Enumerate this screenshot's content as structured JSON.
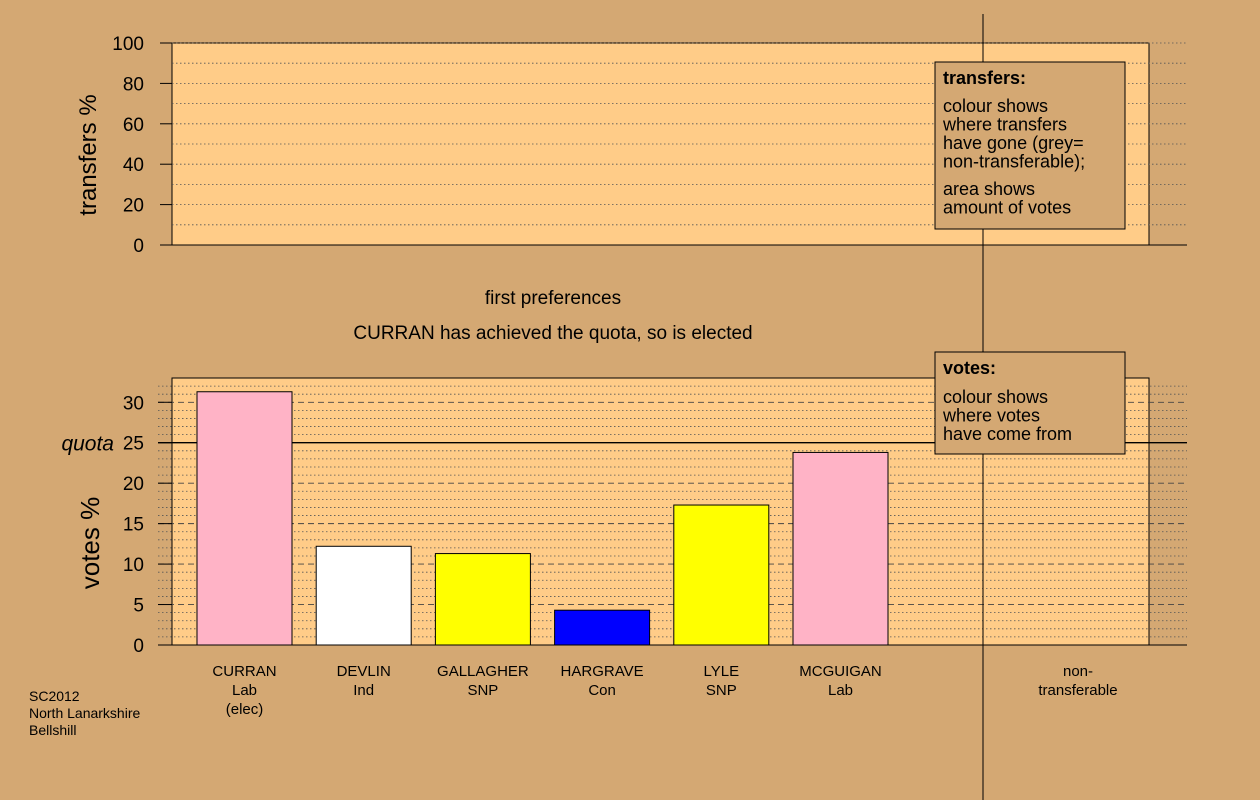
{
  "colors": {
    "background": "#d4a873",
    "panel": "#ffcc88",
    "legend_box": "#d4a873",
    "candidate_colors": [
      "#ffb3c6",
      "#ffffff",
      "#ffff00",
      "#0000ff",
      "#ffff00",
      "#ffb3c6"
    ]
  },
  "stage": {
    "line1": "first preferences",
    "line2": "CURRAN has achieved the quota, so is elected"
  },
  "footer": {
    "line1": "SC2012",
    "line2": "North Lanarkshire",
    "line3": "Bellshill"
  },
  "legend_transfers": {
    "title": "transfers:",
    "lines": [
      "colour shows",
      "where transfers",
      "have gone (grey=",
      "non-transferable);"
    ],
    "lines2": [
      "area shows",
      "amount of votes"
    ]
  },
  "legend_votes": {
    "title": "votes:",
    "lines": [
      "colour shows",
      "where votes",
      "have come from"
    ]
  },
  "chart_data": [
    {
      "type": "bar",
      "title": "",
      "ylabel": "transfers %",
      "ylim": [
        0,
        100
      ],
      "yticks": [
        0,
        20,
        40,
        60,
        80,
        100
      ],
      "series": [],
      "grid": true
    },
    {
      "type": "bar",
      "ylabel": "votes %",
      "ylim": [
        0,
        33
      ],
      "yticks": [
        0,
        5,
        10,
        15,
        20,
        25,
        30
      ],
      "quota": 25,
      "quota_label": "quota",
      "categories": [
        {
          "name": "CURRAN",
          "party": "Lab",
          "note": "(elec)"
        },
        {
          "name": "DEVLIN",
          "party": "Ind",
          "note": ""
        },
        {
          "name": "GALLAGHER",
          "party": "SNP",
          "note": ""
        },
        {
          "name": "HARGRAVE",
          "party": "Con",
          "note": ""
        },
        {
          "name": "LYLE",
          "party": "SNP",
          "note": ""
        },
        {
          "name": "MCGUIGAN",
          "party": "Lab",
          "note": ""
        }
      ],
      "values": [
        31.3,
        12.2,
        11.3,
        4.3,
        17.3,
        23.8
      ],
      "extra_category": [
        "non-",
        "transferable"
      ],
      "grid": true
    }
  ]
}
